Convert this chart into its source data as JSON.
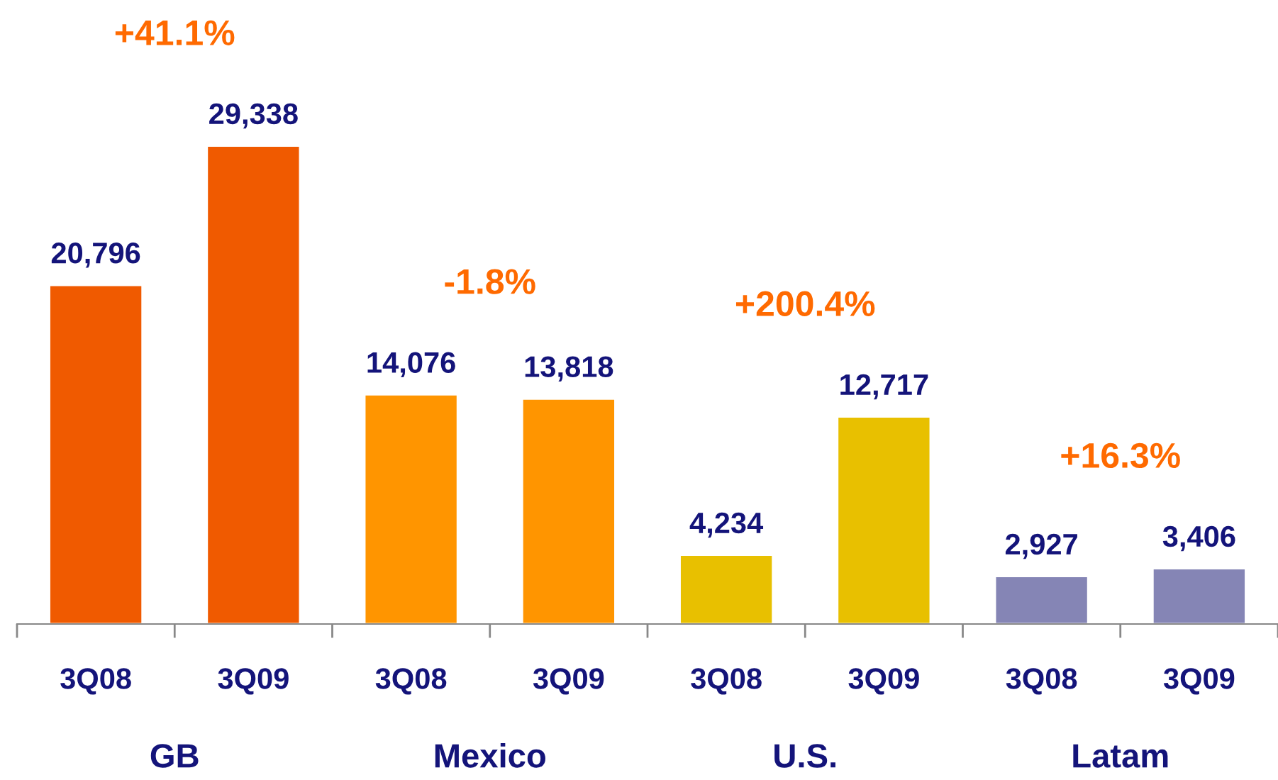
{
  "chart_data": {
    "type": "bar",
    "categories": [
      "3Q08",
      "3Q09",
      "3Q08",
      "3Q09",
      "3Q08",
      "3Q09",
      "3Q08",
      "3Q09"
    ],
    "values": [
      20796,
      29338,
      14076,
      13818,
      4234,
      12717,
      2927,
      3406
    ],
    "colors": [
      "#f05a00",
      "#f05a00",
      "#ff9500",
      "#ff9500",
      "#e8c000",
      "#e8c000",
      "#8585b5",
      "#8585b5"
    ],
    "value_labels": [
      "20,796",
      "29,338",
      "14,076",
      "13,818",
      "4,234",
      "12,717",
      "2,927",
      "3,406"
    ],
    "annotations": [
      "+41.1%",
      "-1.8%",
      "+200.4%",
      "+16.3%",
      "GB",
      "Mexico",
      "U.S.",
      "Latam"
    ],
    "grid": false,
    "legend": false
  }
}
